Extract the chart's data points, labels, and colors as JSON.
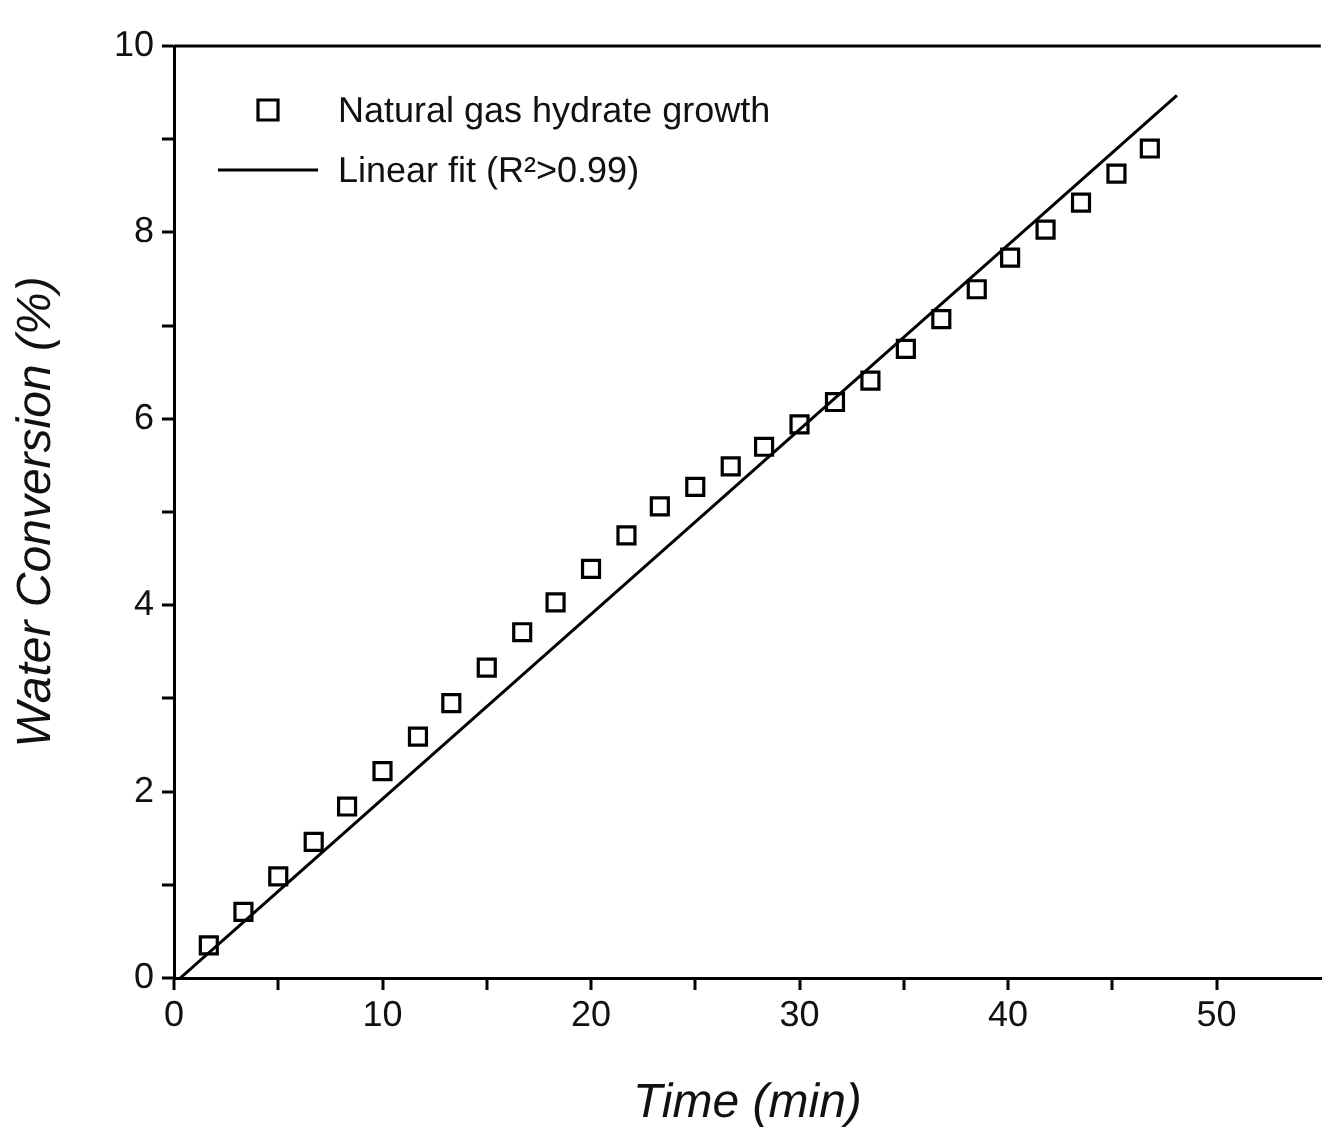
{
  "chart_data": {
    "type": "scatter",
    "xlabel": "Time (min)",
    "ylabel": "Water Conversion (%)",
    "xlim": [
      0,
      55
    ],
    "ylim": [
      0,
      10
    ],
    "xticks": [
      0,
      {
        "value": 5,
        "label": null
      },
      10,
      {
        "value": 15,
        "label": null
      },
      20,
      {
        "value": 25,
        "label": null
      },
      30,
      {
        "value": 35,
        "label": null
      },
      40,
      {
        "value": 45,
        "label": null
      },
      50
    ],
    "yticks": [
      0,
      {
        "value": 1,
        "label": null
      },
      2,
      {
        "value": 3,
        "label": null
      },
      4,
      {
        "value": 5,
        "label": null
      },
      6,
      {
        "value": 7,
        "label": null
      },
      8,
      {
        "value": 9,
        "label": null
      },
      10
    ],
    "grid": false,
    "legend": "top left",
    "marker": "square",
    "series": [
      {
        "name": "Natural gas hydrate growth",
        "type": "scatter",
        "color": "#000000",
        "x": [
          1.67,
          3.33,
          5.0,
          6.7,
          8.3,
          10.0,
          11.7,
          13.3,
          15.0,
          16.7,
          18.3,
          20.0,
          21.7,
          23.3,
          25.0,
          26.7,
          28.3,
          30.0,
          31.7,
          33.4,
          35.1,
          36.8,
          38.5,
          40.1,
          41.8,
          43.5,
          45.2,
          46.8
        ],
        "values": [
          0.35,
          0.71,
          1.09,
          1.46,
          1.84,
          2.22,
          2.59,
          2.95,
          3.33,
          3.71,
          4.03,
          4.39,
          4.75,
          5.06,
          5.27,
          5.49,
          5.7,
          5.94,
          6.18,
          6.41,
          6.75,
          7.07,
          7.39,
          7.73,
          8.03,
          8.32,
          8.63,
          8.9
        ]
      },
      {
        "name": "Linear fit (R²>0.99)",
        "type": "line",
        "marker": "none",
        "color": "#000000",
        "x": [
          0.3,
          48.1
        ],
        "values": [
          0,
          9.47
        ]
      }
    ]
  }
}
